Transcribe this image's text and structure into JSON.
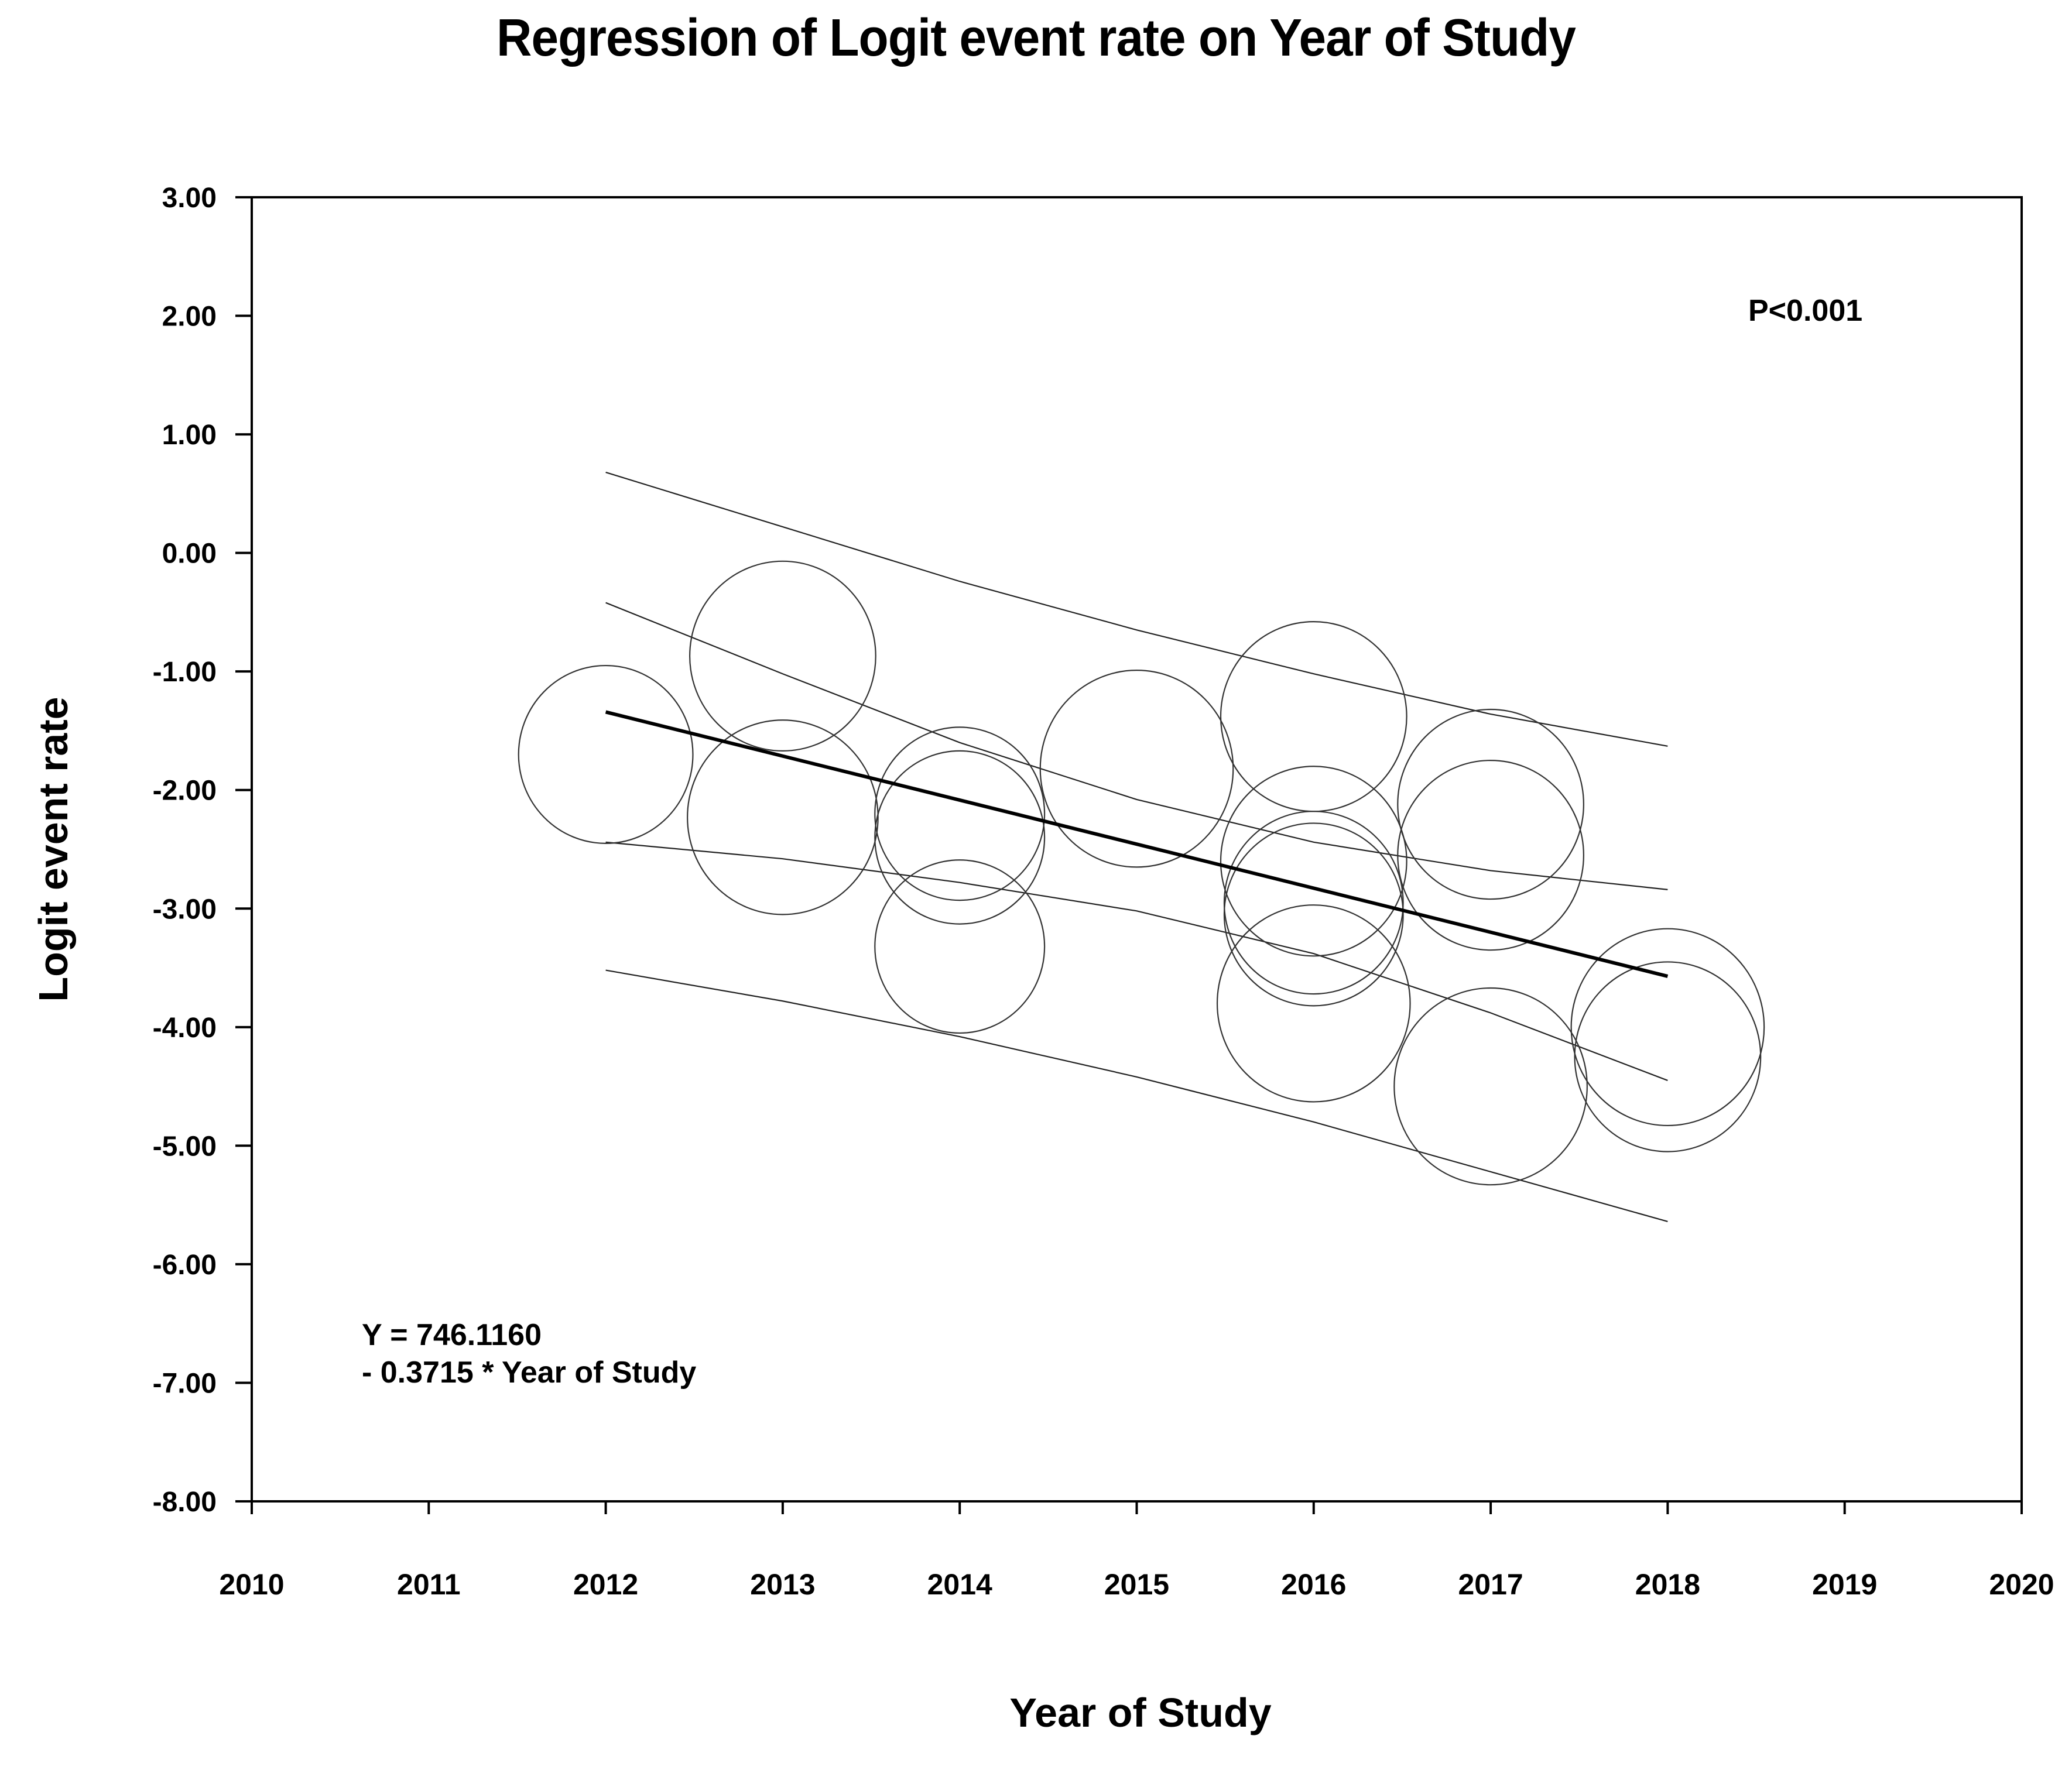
{
  "chart_data": {
    "type": "scatter",
    "title": "Regression of Logit event rate on Year of Study",
    "xlabel": "Year of Study",
    "ylabel": "Logit event rate",
    "xlim": [
      2010,
      2020
    ],
    "ylim": [
      -8,
      3
    ],
    "xticks": [
      "2010",
      "2011",
      "2012",
      "2013",
      "2014",
      "2015",
      "2016",
      "2017",
      "2018",
      "2019",
      "2020"
    ],
    "yticks": [
      "3.00",
      "2.00",
      "1.00",
      "0.00",
      "-1.00",
      "-2.00",
      "-3.00",
      "-4.00",
      "-5.00",
      "-6.00",
      "-7.00",
      "-8.00"
    ],
    "points": [
      {
        "x": 2012,
        "y": -1.7,
        "r": 0.75
      },
      {
        "x": 2013,
        "y": -0.87,
        "r": 0.8
      },
      {
        "x": 2013,
        "y": -2.23,
        "r": 0.82
      },
      {
        "x": 2014,
        "y": -2.2,
        "r": 0.73
      },
      {
        "x": 2014,
        "y": -2.4,
        "r": 0.73
      },
      {
        "x": 2014,
        "y": -3.32,
        "r": 0.73
      },
      {
        "x": 2015,
        "y": -1.82,
        "r": 0.83
      },
      {
        "x": 2016,
        "y": -1.38,
        "r": 0.8
      },
      {
        "x": 2016,
        "y": -2.6,
        "r": 0.8
      },
      {
        "x": 2016,
        "y": -2.95,
        "r": 0.77
      },
      {
        "x": 2016,
        "y": -3.05,
        "r": 0.77
      },
      {
        "x": 2016,
        "y": -3.8,
        "r": 0.83
      },
      {
        "x": 2017,
        "y": -2.12,
        "r": 0.8
      },
      {
        "x": 2017,
        "y": -2.55,
        "r": 0.8
      },
      {
        "x": 2017,
        "y": -4.5,
        "r": 0.83
      },
      {
        "x": 2018,
        "y": -4.0,
        "r": 0.83
      },
      {
        "x": 2018,
        "y": -4.25,
        "r": 0.8
      }
    ],
    "regression": {
      "intercept": 746.116,
      "slope": -0.3715,
      "x_range": [
        2012,
        2018
      ]
    },
    "ci_upper": {
      "x": [
        2012,
        2013,
        2014,
        2015,
        2016,
        2017,
        2018
      ],
      "y": [
        -0.42,
        -1.02,
        -1.6,
        -2.08,
        -2.44,
        -2.68,
        -2.84
      ]
    },
    "ci_lower": {
      "x": [
        2012,
        2013,
        2014,
        2015,
        2016,
        2017,
        2018
      ],
      "y": [
        -2.44,
        -2.58,
        -2.78,
        -3.02,
        -3.38,
        -3.88,
        -4.45
      ]
    },
    "pi_upper": {
      "x": [
        2012,
        2013,
        2014,
        2015,
        2016,
        2017,
        2018
      ],
      "y": [
        0.68,
        0.22,
        -0.24,
        -0.65,
        -1.02,
        -1.36,
        -1.63
      ]
    },
    "pi_lower": {
      "x": [
        2012,
        2013,
        2014,
        2015,
        2016,
        2017,
        2018
      ],
      "y": [
        -3.52,
        -3.78,
        -4.08,
        -4.42,
        -4.8,
        -5.22,
        -5.64
      ]
    },
    "annotations": {
      "pvalue": "P<0.001",
      "equation_line1": "Y = 746.1160",
      "equation_line2": "- 0.3715 * Year of Study"
    }
  }
}
